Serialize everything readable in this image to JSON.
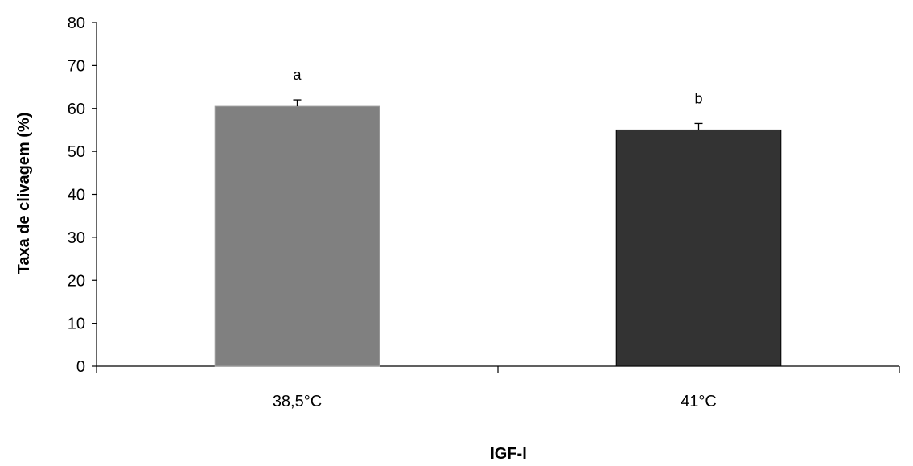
{
  "chart_data": {
    "type": "bar",
    "xlabel": "IGF-I",
    "ylabel": "Taxa de clivagem (%)",
    "ylim": [
      0,
      80
    ],
    "yticks": [
      0,
      10,
      20,
      30,
      40,
      50,
      60,
      70,
      80
    ],
    "categories": [
      "38,5°C",
      "41°C"
    ],
    "values": [
      60.5,
      55.0
    ],
    "error": [
      1.5,
      1.5
    ],
    "significance_labels": [
      "a",
      "b"
    ],
    "colors": [
      "#808080",
      "#333333"
    ],
    "grid": false,
    "legend": "none"
  }
}
